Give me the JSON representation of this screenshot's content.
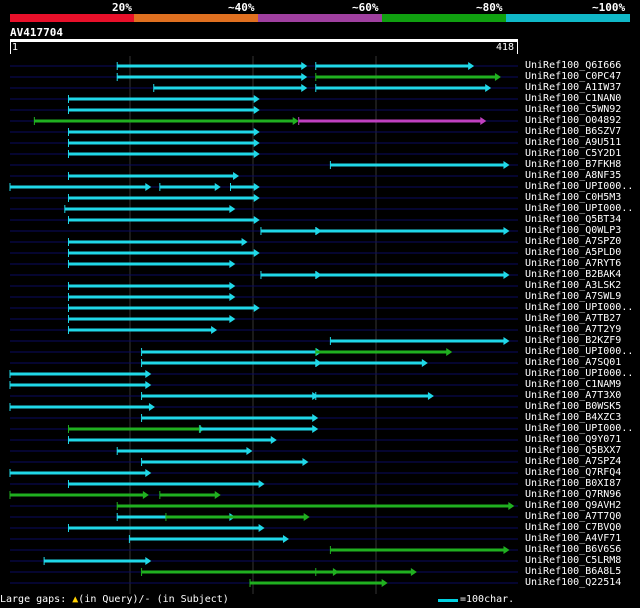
{
  "legend": {
    "labels": [
      "20%",
      "~40%",
      "~60%",
      "~80%",
      "~100%"
    ],
    "colors": [
      "#e8102a",
      "#e07020",
      "#a040a0",
      "#10a010",
      "#10b8c8"
    ]
  },
  "query": {
    "id": "AV417704",
    "start_label": "1",
    "end_label": "418",
    "length": 418
  },
  "colors": {
    "cyan": "#20d8e8",
    "green": "#20b020",
    "magenta": "#c040c0",
    "line": "#0a0a60",
    "grid": "#333333",
    "qbar": "#ffffff"
  },
  "chart_data": {
    "type": "alignment-graphic",
    "title": "AV417704",
    "query_range": [
      1,
      418
    ],
    "hits": [
      {
        "name": "UniRef100_Q6I666",
        "segs": [
          [
            1,
            89,
            245,
            "cyan"
          ],
          [
            1,
            252,
            382,
            "cyan"
          ]
        ]
      },
      {
        "name": "UniRef100_C0PC47",
        "segs": [
          [
            1,
            89,
            245,
            "cyan"
          ],
          [
            1,
            252,
            404,
            "green"
          ]
        ]
      },
      {
        "name": "UniRef100_A1IW37",
        "segs": [
          [
            1,
            119,
            245,
            "cyan"
          ],
          [
            1,
            252,
            396,
            "cyan"
          ]
        ]
      },
      {
        "name": "UniRef100_C1NAN0",
        "segs": [
          [
            1,
            49,
            206,
            "cyan"
          ]
        ]
      },
      {
        "name": "UniRef100_C5WN92",
        "segs": [
          [
            1,
            49,
            206,
            "cyan"
          ]
        ]
      },
      {
        "name": "UniRef100_O04892",
        "segs": [
          [
            1,
            21,
            238,
            "green"
          ],
          [
            1,
            238,
            392,
            "magenta"
          ]
        ]
      },
      {
        "name": "UniRef100_B6SZV7",
        "segs": [
          [
            1,
            49,
            206,
            "cyan"
          ]
        ]
      },
      {
        "name": "UniRef100_A9U511",
        "segs": [
          [
            1,
            49,
            206,
            "cyan"
          ]
        ]
      },
      {
        "name": "UniRef100_C5Y2D1",
        "segs": [
          [
            1,
            49,
            206,
            "cyan"
          ]
        ]
      },
      {
        "name": "UniRef100_B7FKH8",
        "segs": [
          [
            1,
            264,
            411,
            "cyan"
          ]
        ]
      },
      {
        "name": "UniRef100_A8NF35",
        "segs": [
          [
            1,
            49,
            189,
            "cyan"
          ]
        ]
      },
      {
        "name": "UniRef100_UPI000..",
        "segs": [
          [
            1,
            1,
            117,
            "cyan"
          ],
          [
            1,
            124,
            174,
            "cyan"
          ],
          [
            1,
            182,
            206,
            "cyan"
          ]
        ]
      },
      {
        "name": "UniRef100_C0H5M3",
        "segs": [
          [
            1,
            49,
            206,
            "cyan"
          ]
        ]
      },
      {
        "name": "UniRef100_UPI000..",
        "segs": [
          [
            1,
            46,
            186,
            "cyan"
          ]
        ]
      },
      {
        "name": "UniRef100_Q5BT34",
        "segs": [
          [
            1,
            49,
            206,
            "cyan"
          ]
        ]
      },
      {
        "name": "UniRef100_Q0WLP3",
        "segs": [
          [
            1,
            207,
            257,
            "cyan"
          ],
          [
            1,
            252,
            411,
            "cyan"
          ]
        ]
      },
      {
        "name": "UniRef100_A7SPZ0",
        "segs": [
          [
            1,
            49,
            196,
            "cyan"
          ]
        ]
      },
      {
        "name": "UniRef100_A5PLD0",
        "segs": [
          [
            1,
            49,
            206,
            "cyan"
          ]
        ]
      },
      {
        "name": "UniRef100_A7RYT6",
        "segs": [
          [
            1,
            49,
            186,
            "cyan"
          ]
        ]
      },
      {
        "name": "UniRef100_B2BAK4",
        "segs": [
          [
            1,
            207,
            257,
            "cyan"
          ],
          [
            1,
            252,
            411,
            "cyan"
          ]
        ]
      },
      {
        "name": "UniRef100_A3LSK2",
        "segs": [
          [
            1,
            49,
            186,
            "cyan"
          ]
        ]
      },
      {
        "name": "UniRef100_A7SWL9",
        "segs": [
          [
            1,
            49,
            186,
            "cyan"
          ]
        ]
      },
      {
        "name": "UniRef100_UPI000..",
        "segs": [
          [
            1,
            49,
            206,
            "cyan"
          ]
        ]
      },
      {
        "name": "UniRef100_A7TB27",
        "segs": [
          [
            1,
            49,
            186,
            "cyan"
          ]
        ]
      },
      {
        "name": "UniRef100_A7T2Y9",
        "segs": [
          [
            1,
            49,
            171,
            "cyan"
          ]
        ]
      },
      {
        "name": "UniRef100_B2KZF9",
        "segs": [
          [
            1,
            264,
            411,
            "cyan"
          ]
        ]
      },
      {
        "name": "UniRef100_UPI000..",
        "segs": [
          [
            1,
            109,
            257,
            "cyan"
          ],
          [
            1,
            252,
            364,
            "green"
          ]
        ]
      },
      {
        "name": "UniRef100_A7SQ01",
        "segs": [
          [
            1,
            109,
            257,
            "cyan"
          ],
          [
            1,
            252,
            344,
            "cyan"
          ]
        ]
      },
      {
        "name": "UniRef100_UPI000..",
        "segs": [
          [
            1,
            1,
            117,
            "cyan"
          ]
        ]
      },
      {
        "name": "UniRef100_C1NAM9",
        "segs": [
          [
            1,
            1,
            117,
            "cyan"
          ]
        ]
      },
      {
        "name": "UniRef100_A7T3X0",
        "segs": [
          [
            1,
            109,
            254,
            "cyan"
          ],
          [
            1,
            252,
            349,
            "cyan"
          ]
        ]
      },
      {
        "name": "UniRef100_B0WSK5",
        "segs": [
          [
            1,
            1,
            120,
            "cyan"
          ]
        ]
      },
      {
        "name": "UniRef100_B4XZC3",
        "segs": [
          [
            1,
            109,
            254,
            "cyan"
          ]
        ]
      },
      {
        "name": "UniRef100_UPI000..",
        "segs": [
          [
            1,
            49,
            161,
            "green"
          ],
          [
            1,
            157,
            254,
            "cyan"
          ]
        ]
      },
      {
        "name": "UniRef100_Q9Y071",
        "segs": [
          [
            1,
            49,
            220,
            "cyan"
          ]
        ]
      },
      {
        "name": "UniRef100_Q5BXX7",
        "segs": [
          [
            1,
            89,
            200,
            "cyan"
          ]
        ]
      },
      {
        "name": "UniRef100_A7SPZ4",
        "segs": [
          [
            1,
            109,
            246,
            "cyan"
          ]
        ]
      },
      {
        "name": "UniRef100_Q7RFQ4",
        "segs": [
          [
            1,
            1,
            117,
            "cyan"
          ]
        ]
      },
      {
        "name": "UniRef100_B0XI87",
        "segs": [
          [
            1,
            49,
            210,
            "cyan"
          ]
        ]
      },
      {
        "name": "UniRef100_Q7RN96",
        "segs": [
          [
            1,
            1,
            115,
            "green"
          ],
          [
            1,
            124,
            174,
            "green"
          ]
        ]
      },
      {
        "name": "UniRef100_Q9AVH2",
        "segs": [
          [
            1,
            89,
            415,
            "green"
          ]
        ]
      },
      {
        "name": "UniRef100_A7T7Q0",
        "segs": [
          [
            1,
            89,
            186,
            "cyan"
          ],
          [
            1,
            129,
            247,
            "green"
          ]
        ]
      },
      {
        "name": "UniRef100_C7BVQ0",
        "segs": [
          [
            1,
            49,
            210,
            "cyan"
          ]
        ]
      },
      {
        "name": "UniRef100_A4VF71",
        "segs": [
          [
            1,
            99,
            230,
            "cyan"
          ]
        ]
      },
      {
        "name": "UniRef100_B6V6S6",
        "segs": [
          [
            1,
            264,
            411,
            "green"
          ]
        ]
      },
      {
        "name": "UniRef100_C5LRM8",
        "segs": [
          [
            1,
            29,
            117,
            "cyan"
          ]
        ]
      },
      {
        "name": "UniRef100_B6A8L5",
        "segs": [
          [
            1,
            109,
            271,
            "green"
          ],
          [
            1,
            252,
            335,
            "green"
          ]
        ]
      },
      {
        "name": "UniRef100_Q22514",
        "segs": [
          [
            1,
            198,
            311,
            "green"
          ]
        ]
      }
    ]
  },
  "footer": {
    "prefix": "Large gaps:",
    "query_gap": "(in Query)/",
    "subject_gap": "- (in Subject)",
    "scale_key": "=100char."
  }
}
